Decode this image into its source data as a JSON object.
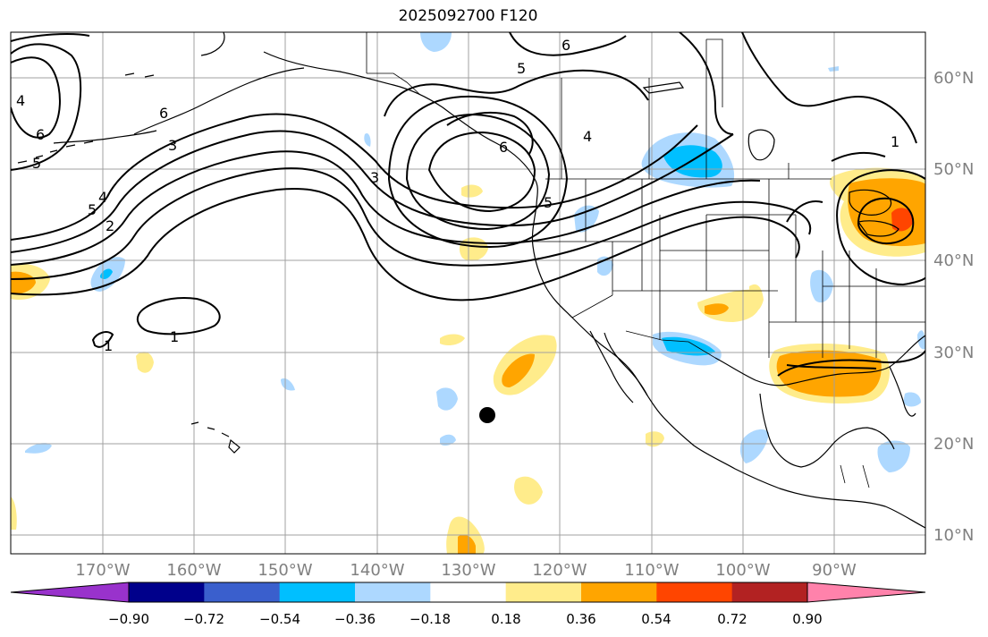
{
  "title": "2025092700 F120",
  "lon_labels": [
    "170°W",
    "160°W",
    "150°W",
    "140°W",
    "130°W",
    "120°W",
    "110°W",
    "100°W",
    "90°W"
  ],
  "lat_labels": [
    "60°N",
    "50°N",
    "40°N",
    "30°N",
    "20°N",
    "10°N"
  ],
  "colorbar": {
    "ticks": [
      "−0.90",
      "−0.72",
      "−0.54",
      "−0.36",
      "−0.18",
      "0.18",
      "0.36",
      "0.54",
      "0.72",
      "0.90"
    ],
    "colors": [
      "#9932cc",
      "#00008b",
      "#3a5fcd",
      "#00bfff",
      "#add8ff",
      "#ffffff",
      "#ffec8b",
      "#ffa500",
      "#ff4500",
      "#b22222",
      "#ff82ab"
    ]
  },
  "contour_labels": [
    "6",
    "5",
    "4",
    "3",
    "2",
    "1",
    "4",
    "5",
    "6",
    "3",
    "6",
    "5",
    "4",
    "6",
    "5",
    "1",
    "1"
  ],
  "marker": {
    "label": "storm-center"
  }
}
